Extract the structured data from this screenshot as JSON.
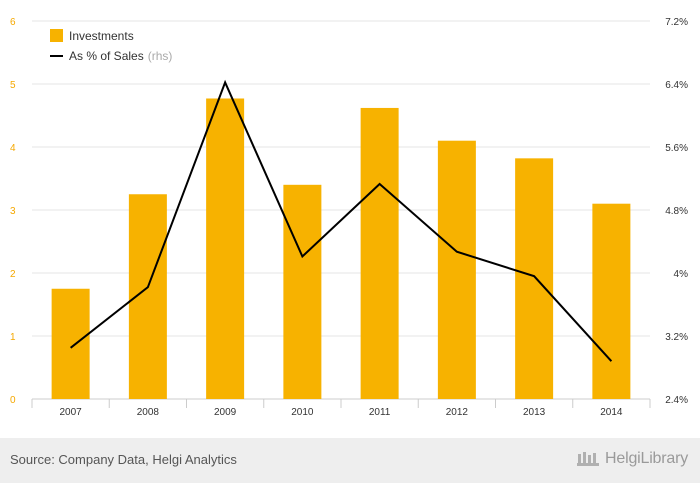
{
  "chart_data": {
    "type": "bar",
    "categories": [
      "2007",
      "2008",
      "2009",
      "2010",
      "2011",
      "2012",
      "2013",
      "2014"
    ],
    "series": [
      {
        "name": "Investments",
        "type": "bar",
        "axis": "left",
        "color": "#f7b200",
        "values": [
          1.75,
          3.25,
          4.77,
          3.4,
          4.62,
          4.1,
          3.82,
          3.1
        ]
      },
      {
        "name": "As % of Sales",
        "type": "line",
        "axis": "right",
        "color": "#000000",
        "values": [
          3.05,
          3.82,
          6.42,
          4.21,
          5.13,
          4.27,
          3.96,
          2.88
        ]
      }
    ],
    "yleft": {
      "ticks": [
        "0",
        "1",
        "2",
        "3",
        "4",
        "5",
        "6"
      ],
      "lim": [
        0,
        6
      ]
    },
    "yright": {
      "ticks": [
        "2.4%",
        "3.2%",
        "4%",
        "4.8%",
        "5.6%",
        "6.4%",
        "7.2%"
      ],
      "lim": [
        2.4,
        7.2
      ]
    },
    "legend": {
      "position": "top-left",
      "bar_label": "Investments",
      "line_label": "As % of Sales",
      "line_note": "(rhs)"
    },
    "grid": true
  },
  "footer": {
    "source": "Source: Company Data, Helgi Analytics",
    "logo_text": "HelgiLibrary"
  },
  "colors": {
    "bar": "#f7b200",
    "line": "#000000",
    "left_axis": "#f5a800"
  },
  "icons": {
    "logo": "library-icon"
  }
}
